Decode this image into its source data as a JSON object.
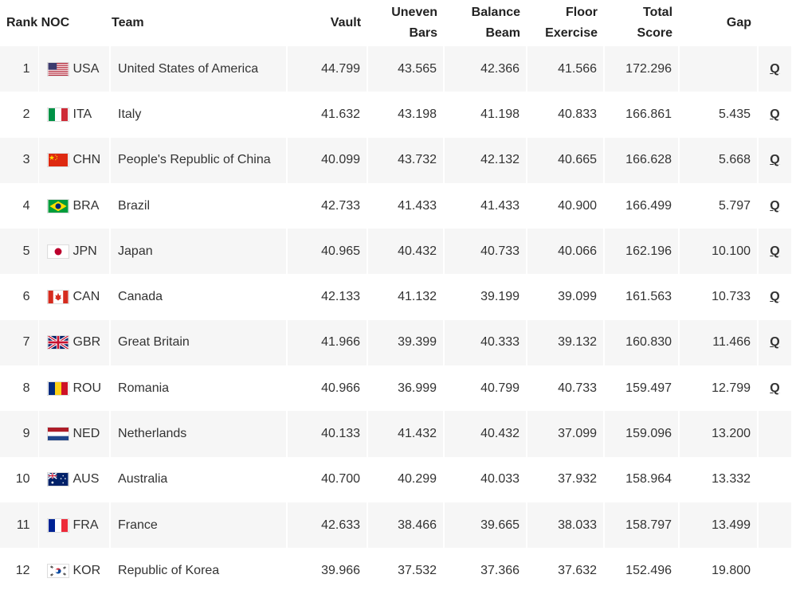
{
  "headers": {
    "rank": "Rank",
    "noc": "NOC",
    "team": "Team",
    "vault": "Vault",
    "uneven_1": "Uneven",
    "uneven_2": "Bars",
    "beam_1": "Balance",
    "beam_2": "Beam",
    "floor_1": "Floor",
    "floor_2": "Exercise",
    "total_1": "Total",
    "total_2": "Score",
    "gap": "Gap"
  },
  "rows": [
    {
      "rank": "1",
      "noc": "USA",
      "team": "United States of America",
      "vault": "44.799",
      "uneven": "43.565",
      "beam": "42.366",
      "floor": "41.566",
      "total": "172.296",
      "gap": "",
      "q": "Q"
    },
    {
      "rank": "2",
      "noc": "ITA",
      "team": "Italy",
      "vault": "41.632",
      "uneven": "43.198",
      "beam": "41.198",
      "floor": "40.833",
      "total": "166.861",
      "gap": "5.435",
      "q": "Q"
    },
    {
      "rank": "3",
      "noc": "CHN",
      "team": "People's Republic of China",
      "vault": "40.099",
      "uneven": "43.732",
      "beam": "42.132",
      "floor": "40.665",
      "total": "166.628",
      "gap": "5.668",
      "q": "Q"
    },
    {
      "rank": "4",
      "noc": "BRA",
      "team": "Brazil",
      "vault": "42.733",
      "uneven": "41.433",
      "beam": "41.433",
      "floor": "40.900",
      "total": "166.499",
      "gap": "5.797",
      "q": "Q"
    },
    {
      "rank": "5",
      "noc": "JPN",
      "team": "Japan",
      "vault": "40.965",
      "uneven": "40.432",
      "beam": "40.733",
      "floor": "40.066",
      "total": "162.196",
      "gap": "10.100",
      "q": "Q"
    },
    {
      "rank": "6",
      "noc": "CAN",
      "team": "Canada",
      "vault": "42.133",
      "uneven": "41.132",
      "beam": "39.199",
      "floor": "39.099",
      "total": "161.563",
      "gap": "10.733",
      "q": "Q"
    },
    {
      "rank": "7",
      "noc": "GBR",
      "team": "Great Britain",
      "vault": "41.966",
      "uneven": "39.399",
      "beam": "40.333",
      "floor": "39.132",
      "total": "160.830",
      "gap": "11.466",
      "q": "Q"
    },
    {
      "rank": "8",
      "noc": "ROU",
      "team": "Romania",
      "vault": "40.966",
      "uneven": "36.999",
      "beam": "40.799",
      "floor": "40.733",
      "total": "159.497",
      "gap": "12.799",
      "q": "Q"
    },
    {
      "rank": "9",
      "noc": "NED",
      "team": "Netherlands",
      "vault": "40.133",
      "uneven": "41.432",
      "beam": "40.432",
      "floor": "37.099",
      "total": "159.096",
      "gap": "13.200",
      "q": ""
    },
    {
      "rank": "10",
      "noc": "AUS",
      "team": "Australia",
      "vault": "40.700",
      "uneven": "40.299",
      "beam": "40.033",
      "floor": "37.932",
      "total": "158.964",
      "gap": "13.332",
      "q": ""
    },
    {
      "rank": "11",
      "noc": "FRA",
      "team": "France",
      "vault": "42.633",
      "uneven": "38.466",
      "beam": "39.665",
      "floor": "38.033",
      "total": "158.797",
      "gap": "13.499",
      "q": ""
    },
    {
      "rank": "12",
      "noc": "KOR",
      "team": "Republic of Korea",
      "vault": "39.966",
      "uneven": "37.532",
      "beam": "37.366",
      "floor": "37.632",
      "total": "152.496",
      "gap": "19.800",
      "q": ""
    }
  ]
}
